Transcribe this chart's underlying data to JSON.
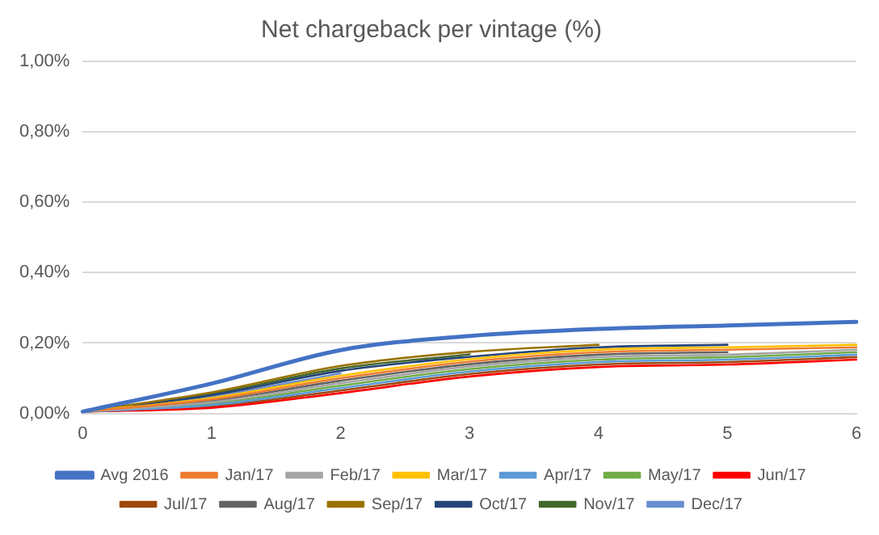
{
  "chart_data": {
    "type": "line",
    "title": "Net chargeback per vintage (%)",
    "categories": [
      "0",
      "1",
      "2",
      "3",
      "4",
      "5",
      "6"
    ],
    "ylim": [
      0,
      1
    ],
    "yticks": [
      {
        "value": 0,
        "label": "0,00%"
      },
      {
        "value": 0.2,
        "label": "0,20%"
      },
      {
        "value": 0.4,
        "label": "0,40%"
      },
      {
        "value": 0.6,
        "label": "0,60%"
      },
      {
        "value": 0.8,
        "label": "0,80%"
      },
      {
        "value": 1,
        "label": "1,00%"
      }
    ],
    "grid": "y",
    "legend": "bottom",
    "marker": "none",
    "line_style": "solid",
    "series": [
      {
        "name": "Avg 2016",
        "color": "#4472c4",
        "values": [
          0.005,
          0.085,
          0.18,
          0.22,
          0.24,
          0.25,
          0.26
        ]
      },
      {
        "name": "Jan/17",
        "color": "#ed7d31",
        "values": [
          0.005,
          0.04,
          0.1,
          0.147,
          0.174,
          0.181,
          0.188
        ]
      },
      {
        "name": "Feb/17",
        "color": "#a5a5a5",
        "values": [
          0.005,
          0.032,
          0.086,
          0.133,
          0.16,
          0.167,
          0.181
        ]
      },
      {
        "name": "Mar/17",
        "color": "#ffc000",
        "values": [
          0.005,
          0.044,
          0.107,
          0.154,
          0.181,
          0.188,
          0.195
        ]
      },
      {
        "name": "Apr/17",
        "color": "#5b9bd5",
        "values": [
          0.005,
          0.024,
          0.072,
          0.119,
          0.146,
          0.153,
          0.167
        ]
      },
      {
        "name": "May/17",
        "color": "#70ad47",
        "values": [
          0.005,
          0.028,
          0.079,
          0.126,
          0.153,
          0.16,
          0.174
        ]
      },
      {
        "name": "Jun/17",
        "color": "#ff0000",
        "values": [
          0.005,
          0.016,
          0.058,
          0.105,
          0.132,
          0.139,
          0.153
        ]
      },
      {
        "name": "Jul/17",
        "color": "#9e480e",
        "values": [
          0.005,
          0.02,
          0.065,
          0.112,
          0.139,
          0.146,
          0.16
        ]
      },
      {
        "name": "Aug/17",
        "color": "#636363",
        "values": [
          0.005,
          0.036,
          0.093,
          0.14,
          0.167,
          0.174,
          null
        ]
      },
      {
        "name": "Sep/17",
        "color": "#997300",
        "values": [
          0.005,
          0.06,
          0.135,
          0.175,
          0.195,
          null,
          null
        ]
      },
      {
        "name": "Oct/17",
        "color": "#264478",
        "values": [
          0.005,
          0.052,
          0.121,
          0.161,
          0.188,
          0.195,
          null
        ]
      },
      {
        "name": "Nov/17",
        "color": "#43682b",
        "values": [
          0.005,
          0.056,
          0.128,
          0.168,
          null,
          null,
          null
        ]
      },
      {
        "name": "Dec/17",
        "color": "#698ed0",
        "values": [
          0.005,
          0.048,
          0.114,
          null,
          null,
          null,
          null
        ]
      }
    ]
  }
}
